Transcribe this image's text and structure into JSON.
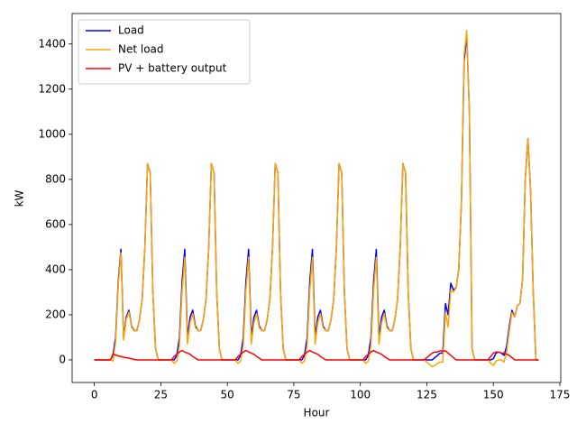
{
  "chart_data": {
    "type": "line",
    "xlabel": "Hour",
    "ylabel": "kW",
    "xlim": [
      -8.35,
      175.35
    ],
    "xticks": [
      0,
      25,
      50,
      75,
      100,
      125,
      150,
      175
    ],
    "ylim": [
      -100,
      1535
    ],
    "yticks": [
      0,
      200,
      400,
      600,
      800,
      1000,
      1200,
      1400
    ],
    "legend": "upper left",
    "x": [
      0,
      1,
      2,
      3,
      4,
      5,
      6,
      7,
      8,
      9,
      10,
      11,
      12,
      13,
      14,
      15,
      16,
      17,
      18,
      19,
      20,
      21,
      22,
      23,
      24,
      25,
      26,
      27,
      28,
      29,
      30,
      31,
      32,
      33,
      34,
      35,
      36,
      37,
      38,
      39,
      40,
      41,
      42,
      43,
      44,
      45,
      46,
      47,
      48,
      49,
      50,
      51,
      52,
      53,
      54,
      55,
      56,
      57,
      58,
      59,
      60,
      61,
      62,
      63,
      64,
      65,
      66,
      67,
      68,
      69,
      70,
      71,
      72,
      73,
      74,
      75,
      76,
      77,
      78,
      79,
      80,
      81,
      82,
      83,
      84,
      85,
      86,
      87,
      88,
      89,
      90,
      91,
      92,
      93,
      94,
      95,
      96,
      97,
      98,
      99,
      100,
      101,
      102,
      103,
      104,
      105,
      106,
      107,
      108,
      109,
      110,
      111,
      112,
      113,
      114,
      115,
      116,
      117,
      118,
      119,
      120,
      121,
      122,
      123,
      124,
      125,
      126,
      127,
      128,
      129,
      130,
      131,
      132,
      133,
      134,
      135,
      136,
      137,
      138,
      139,
      140,
      141,
      142,
      143,
      144,
      145,
      146,
      147,
      148,
      149,
      150,
      151,
      152,
      153,
      154,
      155,
      156,
      157,
      158,
      159,
      160,
      161,
      162,
      163,
      164,
      165,
      166,
      167
    ],
    "series": [
      {
        "name": "Load",
        "color": "#0000ff",
        "values": [
          0,
          0,
          0,
          0,
          0,
          0,
          0,
          20,
          100,
          350,
          490,
          100,
          190,
          220,
          150,
          130,
          130,
          180,
          270,
          500,
          870,
          830,
          300,
          50,
          0,
          0,
          0,
          0,
          0,
          0,
          0,
          20,
          100,
          350,
          490,
          100,
          190,
          220,
          150,
          130,
          130,
          180,
          270,
          500,
          870,
          830,
          300,
          50,
          0,
          0,
          0,
          0,
          0,
          0,
          0,
          20,
          100,
          350,
          490,
          100,
          190,
          220,
          150,
          130,
          130,
          180,
          270,
          500,
          870,
          830,
          300,
          50,
          0,
          0,
          0,
          0,
          0,
          0,
          0,
          20,
          100,
          350,
          490,
          100,
          190,
          220,
          150,
          130,
          130,
          180,
          270,
          500,
          870,
          830,
          300,
          50,
          0,
          0,
          0,
          0,
          0,
          0,
          0,
          20,
          100,
          350,
          490,
          100,
          190,
          220,
          150,
          130,
          130,
          180,
          270,
          500,
          870,
          830,
          300,
          50,
          0,
          0,
          0,
          0,
          0,
          0,
          0,
          0,
          10,
          20,
          30,
          30,
          250,
          200,
          340,
          310,
          320,
          400,
          700,
          1320,
          1440,
          1100,
          50,
          0,
          0,
          0,
          0,
          0,
          0,
          0,
          5,
          30,
          35,
          30,
          20,
          60,
          150,
          220,
          190,
          240,
          250,
          360,
          800,
          980,
          750,
          300,
          0,
          0
        ]
      },
      {
        "name": "Net load",
        "color": "#ffa500",
        "values": [
          0,
          0,
          0,
          0,
          0,
          0,
          0,
          -5,
          78,
          332,
          475,
          88,
          180,
          212,
          145,
          128,
          130,
          180,
          270,
          500,
          870,
          830,
          300,
          50,
          0,
          0,
          0,
          0,
          0,
          0,
          -15,
          -5,
          65,
          308,
          455,
          70,
          165,
          205,
          142,
          130,
          130,
          180,
          270,
          500,
          870,
          830,
          300,
          50,
          0,
          0,
          0,
          0,
          0,
          0,
          -15,
          -5,
          65,
          308,
          455,
          70,
          165,
          205,
          142,
          130,
          130,
          180,
          270,
          500,
          870,
          830,
          300,
          50,
          0,
          0,
          0,
          0,
          0,
          0,
          -15,
          -5,
          65,
          308,
          455,
          70,
          165,
          205,
          142,
          130,
          130,
          180,
          270,
          500,
          870,
          830,
          300,
          50,
          0,
          0,
          0,
          0,
          0,
          0,
          -15,
          -5,
          65,
          308,
          455,
          70,
          165,
          205,
          142,
          130,
          130,
          180,
          270,
          500,
          870,
          830,
          300,
          50,
          0,
          0,
          0,
          0,
          0,
          -10,
          -20,
          -30,
          -25,
          -15,
          -10,
          -10,
          210,
          145,
          310,
          300,
          320,
          400,
          700,
          1350,
          1460,
          1100,
          50,
          0,
          0,
          0,
          0,
          0,
          0,
          -15,
          -25,
          -5,
          0,
          0,
          -10,
          35,
          130,
          210,
          190,
          240,
          250,
          360,
          800,
          980,
          750,
          300,
          0,
          0
        ]
      },
      {
        "name": "PV + battery output",
        "color": "#ff0000",
        "values": [
          0,
          0,
          0,
          0,
          0,
          0,
          0,
          25,
          22,
          18,
          15,
          12,
          10,
          8,
          5,
          2,
          0,
          0,
          0,
          0,
          0,
          0,
          0,
          0,
          0,
          0,
          0,
          0,
          0,
          0,
          15,
          25,
          35,
          42,
          35,
          30,
          25,
          15,
          8,
          0,
          0,
          0,
          0,
          0,
          0,
          0,
          0,
          0,
          0,
          0,
          0,
          0,
          0,
          0,
          15,
          25,
          35,
          42,
          35,
          30,
          25,
          15,
          8,
          0,
          0,
          0,
          0,
          0,
          0,
          0,
          0,
          0,
          0,
          0,
          0,
          0,
          0,
          0,
          15,
          25,
          35,
          42,
          35,
          30,
          25,
          15,
          8,
          0,
          0,
          0,
          0,
          0,
          0,
          0,
          0,
          0,
          0,
          0,
          0,
          0,
          0,
          0,
          15,
          25,
          35,
          42,
          35,
          30,
          25,
          15,
          8,
          0,
          0,
          0,
          0,
          0,
          0,
          0,
          0,
          0,
          0,
          0,
          0,
          0,
          0,
          10,
          20,
          30,
          35,
          35,
          40,
          40,
          40,
          30,
          20,
          10,
          0,
          0,
          0,
          0,
          0,
          0,
          0,
          0,
          0,
          0,
          0,
          0,
          0,
          15,
          30,
          35,
          35,
          30,
          30,
          25,
          20,
          10,
          0,
          0,
          0,
          0,
          0,
          0,
          0,
          0,
          0,
          0
        ]
      }
    ]
  }
}
